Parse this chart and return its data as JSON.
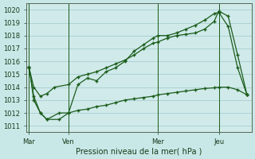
{
  "title": "Pression niveau de la mer( hPa )",
  "background_color": "#c8e8e8",
  "plot_bg_color": "#d0eaea",
  "grid_color": "#a0c8c8",
  "line_color": "#1a5c1a",
  "ylim": [
    1010.5,
    1020.5
  ],
  "yticks": [
    1011,
    1012,
    1013,
    1014,
    1015,
    1016,
    1017,
    1018,
    1019,
    1020
  ],
  "xlim": [
    0,
    24
  ],
  "day_labels": [
    "Mar",
    "Ven",
    "Mer",
    "Jeu"
  ],
  "day_positions": [
    0.3,
    4.5,
    14.0,
    20.5
  ],
  "vlines": [
    0.3,
    4.5,
    14.0,
    20.5
  ],
  "series1_x": [
    0.3,
    0.8,
    1.5,
    2.2,
    3.0,
    4.5,
    5.5,
    6.5,
    7.5,
    8.5,
    9.5,
    10.5,
    11.5,
    12.5,
    13.5,
    14.0,
    15.0,
    16.0,
    17.0,
    18.0,
    19.0,
    20.0,
    20.5,
    21.5,
    22.5,
    23.5
  ],
  "series1_y": [
    1015.5,
    1014.0,
    1013.3,
    1013.5,
    1014.0,
    1014.2,
    1014.8,
    1015.0,
    1015.2,
    1015.5,
    1015.8,
    1016.1,
    1016.5,
    1017.0,
    1017.4,
    1017.5,
    1017.8,
    1018.0,
    1018.1,
    1018.2,
    1018.5,
    1019.1,
    1019.9,
    1019.5,
    1016.5,
    1013.4
  ],
  "series2_x": [
    0.3,
    0.8,
    1.5,
    2.2,
    3.5,
    4.5,
    5.5,
    6.5,
    7.5,
    8.5,
    9.5,
    10.5,
    11.5,
    12.5,
    13.5,
    14.0,
    15.0,
    16.0,
    17.0,
    18.0,
    19.0,
    20.0,
    20.5,
    21.5,
    22.5,
    23.5
  ],
  "series2_y": [
    1015.6,
    1013.0,
    1012.0,
    1011.5,
    1012.0,
    1012.0,
    1014.2,
    1014.7,
    1014.5,
    1015.2,
    1015.5,
    1016.0,
    1016.8,
    1017.3,
    1017.8,
    1018.0,
    1018.0,
    1018.2,
    1018.5,
    1018.8,
    1019.2,
    1019.7,
    1019.8,
    1018.7,
    1015.5,
    1013.4
  ],
  "series3_x": [
    0.3,
    0.8,
    1.5,
    2.2,
    3.5,
    4.5,
    5.5,
    6.5,
    7.5,
    8.5,
    9.5,
    10.5,
    11.5,
    12.5,
    13.5,
    14.0,
    15.0,
    16.0,
    17.0,
    18.0,
    19.0,
    20.0,
    20.5,
    21.5,
    22.5,
    23.5
  ],
  "series3_y": [
    1015.5,
    1013.3,
    1012.0,
    1011.5,
    1011.5,
    1012.0,
    1012.2,
    1012.3,
    1012.5,
    1012.6,
    1012.8,
    1013.0,
    1013.1,
    1013.2,
    1013.3,
    1013.4,
    1013.5,
    1013.6,
    1013.7,
    1013.8,
    1013.9,
    1013.95,
    1014.0,
    1014.0,
    1013.8,
    1013.4
  ]
}
